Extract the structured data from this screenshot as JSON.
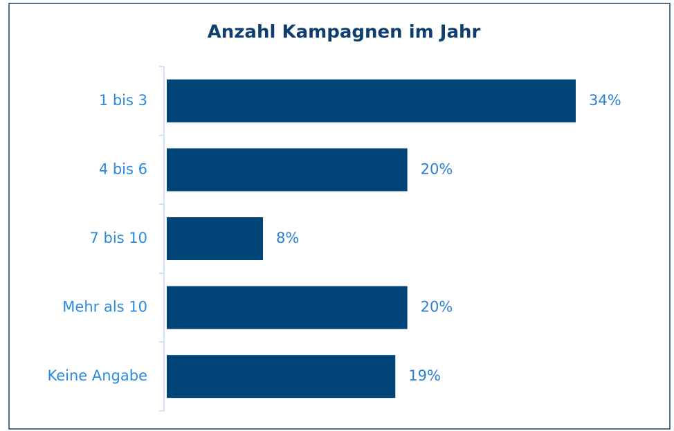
{
  "chart_data": {
    "type": "bar",
    "orientation": "horizontal",
    "title": "Anzahl Kampagnen im Jahr",
    "categories": [
      "1 bis 3",
      "4 bis 6",
      "7 bis 10",
      "Mehr als 10",
      "Keine Angabe"
    ],
    "values": [
      34,
      20,
      8,
      20,
      19
    ],
    "value_labels": [
      "34%",
      "20%",
      "8%",
      "20%",
      "19%"
    ],
    "color": "#004478"
  }
}
